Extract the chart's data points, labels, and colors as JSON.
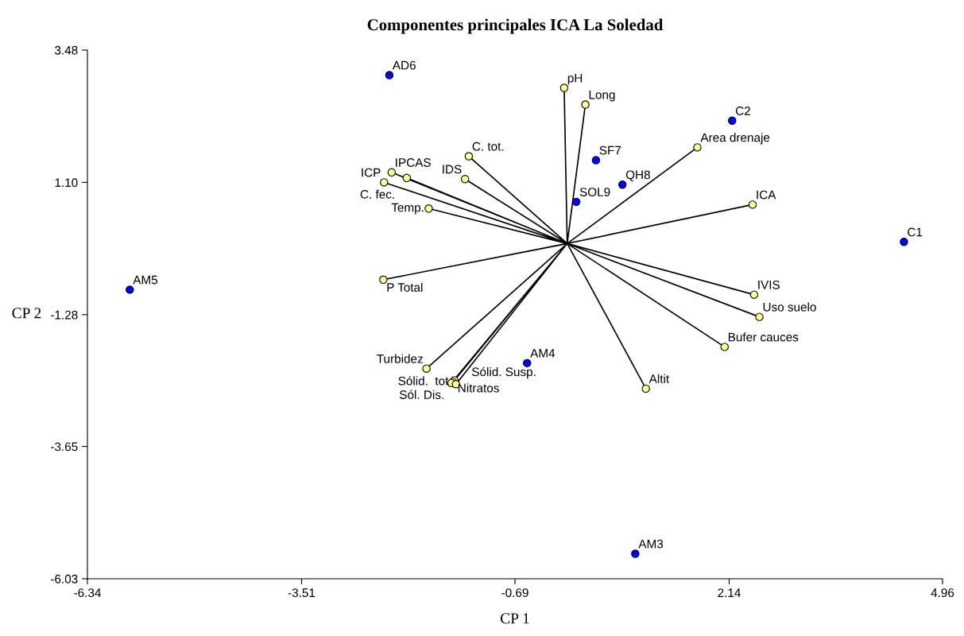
{
  "chart_data": {
    "type": "scatter",
    "title": "Componentes principales ICA La Soledad",
    "xlabel": "CP 1",
    "ylabel": "CP 2",
    "xlim": [
      -6.34,
      4.96
    ],
    "xticks": [
      {
        "value": -6.34,
        "label": "-6.34"
      },
      {
        "value": -3.51,
        "label": "-3.51"
      },
      {
        "value": -0.69,
        "label": "-0.69"
      },
      {
        "value": 2.14,
        "label": "2.14"
      },
      {
        "value": 4.96,
        "label": "4.96"
      }
    ],
    "ylim": [
      -6.03,
      3.48
    ],
    "yticks": [
      {
        "value": -6.03,
        "label": "-6.03"
      },
      {
        "value": -3.65,
        "label": "-3.65"
      },
      {
        "value": -1.28,
        "label": "-1.28"
      },
      {
        "value": 1.1,
        "label": "1.10"
      },
      {
        "value": 3.48,
        "label": "3.48"
      }
    ],
    "grid": false,
    "legend": false,
    "marker": "circle",
    "series": [
      {
        "type": "line",
        "color": "#000000",
        "marker": "none",
        "x": [
          0,
          -0.04,
          null,
          0,
          0.24,
          null,
          0,
          1.72,
          null,
          0,
          2.45,
          null,
          0,
          2.47,
          null,
          0,
          2.54,
          null,
          0,
          2.08,
          null,
          0,
          1.04,
          null,
          0,
          -2.43,
          null,
          0,
          -1.83,
          null,
          0,
          -1.3,
          null,
          0,
          -1.35,
          null,
          0,
          -2.32,
          null,
          0,
          -2.12,
          null,
          0,
          -2.42,
          null,
          0,
          -1.86,
          null,
          0,
          -1.49,
          null,
          0,
          -1.51,
          null,
          0,
          -1.53,
          null,
          0,
          -1.47
        ],
        "values": [
          0,
          2.8,
          null,
          0,
          2.5,
          null,
          0,
          1.73,
          null,
          0,
          0.7,
          null,
          0,
          -0.92,
          null,
          0,
          -1.32,
          null,
          0,
          -1.86,
          null,
          0,
          -2.61,
          null,
          0,
          -0.65,
          null,
          0,
          0.63,
          null,
          0,
          1.57,
          null,
          0,
          1.16,
          null,
          0,
          1.28,
          null,
          0,
          1.18,
          null,
          0,
          1.1,
          null,
          0,
          -2.25,
          null,
          0,
          -2.46,
          null,
          0,
          -2.49,
          null,
          0,
          -2.51,
          null,
          0,
          -2.53
        ]
      },
      {
        "color": "#ffff99",
        "x": [
          -0.04,
          0.24,
          1.72,
          2.45,
          2.47,
          2.54,
          2.08,
          1.04,
          -2.43,
          -1.83,
          -1.3,
          -1.35,
          -2.32,
          -2.12,
          -2.42,
          -1.86,
          -1.49,
          -1.51,
          -1.53,
          -1.47
        ],
        "values": [
          2.8,
          2.5,
          1.73,
          0.7,
          -0.92,
          -1.32,
          -1.86,
          -2.61,
          -0.65,
          0.63,
          1.57,
          1.16,
          1.28,
          1.18,
          1.1,
          -2.25,
          -2.46,
          -2.49,
          -2.51,
          -2.53
        ],
        "value_labels": [
          "pH",
          "Long",
          "Area drenaje",
          "ICA",
          "IVIS",
          "Uso suelo",
          "Bufer cauces",
          "Altit",
          "P Total",
          "Temp.",
          "C. tot.",
          "IDS",
          "IPCAS",
          "C. fec.",
          "ICP",
          "Turbidez",
          "Nitratos",
          "Sólid.  tot",
          "Sól. Dis.",
          "Sólid. Susp."
        ]
      },
      {
        "color": "#0000ff",
        "x": [
          -2.35,
          2.18,
          0.38,
          0.73,
          0.12,
          4.45,
          -5.78,
          -0.53,
          0.9
        ],
        "values": [
          3.03,
          2.21,
          1.5,
          1.06,
          0.75,
          0.03,
          -0.83,
          -2.15,
          -5.58
        ],
        "value_labels": [
          "AD6",
          "C2",
          "SF7",
          "QH8",
          "SOL9",
          "C1",
          "AM5",
          "AM4",
          "AM3"
        ]
      }
    ]
  }
}
